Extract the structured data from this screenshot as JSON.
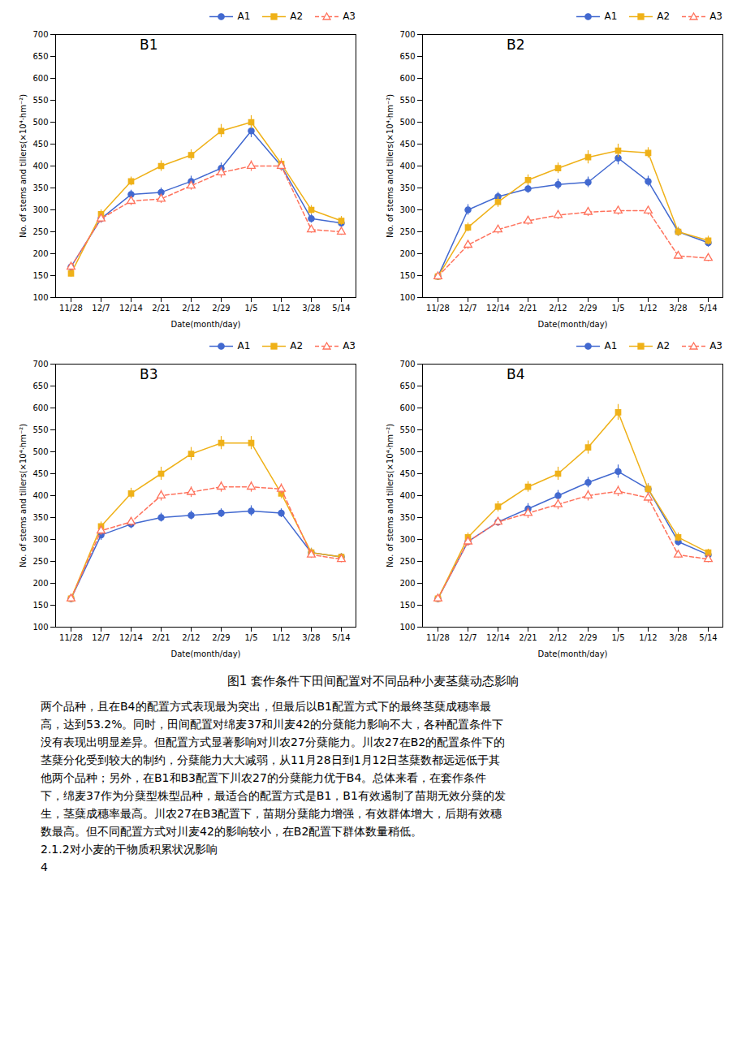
{
  "title": "图1  套作条件下田间配置对不同品种小麦茎蘖动态影响",
  "annotations": [
    "两个品种，且在B4的配置方式表现最为突出，但最后以B1配置方式下的最终茎蘖成穗率最",
    "高，达到53.2%。同时，田间配置对绵麦37和川麦42的分蘖能力影响不大，各种配置条件下",
    "没有表现出明显差异。但配置方式显著影响对川农27分蘖能力。川农27在B2的配置条件下的",
    "茎蘖分化受到较大的制约，分蘖能力大大减弱，从11月28日到1月12日茎蘖数都远远低于其",
    "他两个品种；另外，在B1和B3配置下川农27的分蘖能力优于B4。总体来看，在套作条件",
    "下，绵麦37作为分蘖型株型品种，最适合的配置方式是B1，B1有效遏制了苗期无效分蘖的发",
    "生，茎蘖成穗率最高。川农27在B3配置下，苗期分蘖能力增强，有效群体增大，后期有效穗",
    "数最高。但不同配置方式对川麦42的影响较小，在B2配置下群体数量稍低。",
    "2.1.2对小麦的干物质积累状况影响",
    "4"
  ],
  "chart_data": [
    {
      "type": "line",
      "title": "B1",
      "categories": [
        "11/28",
        "12/7",
        "12/14",
        "2/21",
        "2/12",
        "2/29",
        "1/5",
        "1/12",
        "3/28",
        "5/14"
      ],
      "xlabel": "Date(month/day)",
      "ylabel": "No. of stems and tillers(×10⁴·hm⁻²)",
      "ylim": [
        100,
        700
      ],
      "yticks": [
        100,
        150,
        200,
        250,
        300,
        350,
        400,
        450,
        500,
        550,
        600,
        650,
        700
      ],
      "grid": false,
      "legend": "upper right",
      "series": [
        {
          "name": "A1",
          "marker": "circle",
          "line_style": "solid",
          "values": [
            170,
            280,
            335,
            340,
            365,
            395,
            480,
            400,
            280,
            270
          ],
          "errors": [
            8,
            10,
            10,
            10,
            12,
            12,
            15,
            10,
            10,
            10
          ]
        },
        {
          "name": "A2",
          "marker": "square",
          "line_style": "solid",
          "values": [
            155,
            290,
            365,
            400,
            425,
            480,
            500,
            405,
            300,
            275
          ],
          "errors": [
            8,
            10,
            10,
            12,
            12,
            15,
            15,
            12,
            10,
            10
          ]
        },
        {
          "name": "A3",
          "marker": "triangle-open",
          "line_style": "dashed",
          "values": [
            170,
            280,
            320,
            325,
            355,
            385,
            400,
            400,
            255,
            250
          ],
          "errors": [
            8,
            10,
            10,
            10,
            10,
            12,
            12,
            12,
            8,
            8
          ]
        }
      ]
    },
    {
      "type": "line",
      "title": "B2",
      "categories": [
        "11/28",
        "12/7",
        "12/14",
        "2/21",
        "2/12",
        "2/29",
        "1/5",
        "1/12",
        "3/28",
        "5/14"
      ],
      "xlabel": "Date(month/day)",
      "ylabel": "No. of stems and tillers(×10⁴·hm⁻²)",
      "ylim": [
        100,
        700
      ],
      "yticks": [
        100,
        150,
        200,
        250,
        300,
        350,
        400,
        450,
        500,
        550,
        600,
        650,
        700
      ],
      "grid": false,
      "legend": "upper right",
      "series": [
        {
          "name": "A1",
          "marker": "circle",
          "line_style": "solid",
          "values": [
            148,
            300,
            330,
            348,
            358,
            363,
            418,
            365,
            250,
            225
          ],
          "errors": [
            8,
            12,
            10,
            10,
            12,
            12,
            15,
            12,
            10,
            10
          ]
        },
        {
          "name": "A2",
          "marker": "square",
          "line_style": "solid",
          "values": [
            148,
            260,
            318,
            368,
            395,
            420,
            435,
            430,
            250,
            230
          ],
          "errors": [
            8,
            10,
            12,
            12,
            12,
            15,
            15,
            12,
            10,
            10
          ]
        },
        {
          "name": "A3",
          "marker": "triangle-open",
          "line_style": "dashed",
          "values": [
            148,
            220,
            255,
            275,
            288,
            295,
            298,
            298,
            195,
            190
          ],
          "errors": [
            6,
            10,
            10,
            10,
            10,
            10,
            10,
            10,
            8,
            8
          ]
        }
      ]
    },
    {
      "type": "line",
      "title": "B3",
      "categories": [
        "11/28",
        "12/7",
        "12/14",
        "2/21",
        "2/12",
        "2/29",
        "1/5",
        "1/12",
        "3/28",
        "5/14"
      ],
      "xlabel": "Date(month/day)",
      "ylabel": "No. of stems and tillers(×10⁴·hm⁻²)",
      "ylim": [
        100,
        700
      ],
      "yticks": [
        100,
        150,
        200,
        250,
        300,
        350,
        400,
        450,
        500,
        550,
        600,
        650,
        700
      ],
      "grid": false,
      "legend": "upper right",
      "series": [
        {
          "name": "A1",
          "marker": "circle",
          "line_style": "solid",
          "values": [
            165,
            310,
            335,
            350,
            355,
            360,
            365,
            360,
            270,
            260
          ],
          "errors": [
            8,
            12,
            10,
            10,
            10,
            10,
            12,
            10,
            10,
            8
          ]
        },
        {
          "name": "A2",
          "marker": "square",
          "line_style": "solid",
          "values": [
            165,
            330,
            405,
            450,
            495,
            520,
            520,
            405,
            270,
            260
          ],
          "errors": [
            8,
            10,
            12,
            15,
            15,
            15,
            15,
            12,
            10,
            8
          ]
        },
        {
          "name": "A3",
          "marker": "triangle-open",
          "line_style": "dashed",
          "values": [
            165,
            320,
            340,
            400,
            408,
            420,
            420,
            415,
            265,
            255
          ],
          "errors": [
            8,
            10,
            10,
            12,
            12,
            12,
            12,
            12,
            8,
            8
          ]
        }
      ]
    },
    {
      "type": "line",
      "title": "B4",
      "categories": [
        "11/28",
        "12/7",
        "12/14",
        "2/21",
        "2/12",
        "2/29",
        "1/5",
        "1/12",
        "3/28",
        "5/14"
      ],
      "xlabel": "Date(month/day)",
      "ylabel": "No. of stems and tillers(×10⁴·hm⁻²)",
      "ylim": [
        100,
        700
      ],
      "yticks": [
        100,
        150,
        200,
        250,
        300,
        350,
        400,
        450,
        500,
        550,
        600,
        650,
        700
      ],
      "grid": false,
      "legend": "upper right",
      "series": [
        {
          "name": "A1",
          "marker": "circle",
          "line_style": "solid",
          "values": [
            165,
            295,
            340,
            370,
            400,
            430,
            455,
            415,
            295,
            265
          ],
          "errors": [
            8,
            10,
            10,
            12,
            12,
            12,
            15,
            12,
            10,
            8
          ]
        },
        {
          "name": "A2",
          "marker": "square",
          "line_style": "solid",
          "values": [
            165,
            305,
            375,
            420,
            450,
            510,
            590,
            415,
            305,
            270
          ],
          "errors": [
            8,
            10,
            12,
            12,
            15,
            15,
            18,
            12,
            10,
            8
          ]
        },
        {
          "name": "A3",
          "marker": "triangle-open",
          "line_style": "dashed",
          "values": [
            165,
            295,
            340,
            360,
            380,
            400,
            410,
            395,
            265,
            255
          ],
          "errors": [
            8,
            10,
            10,
            12,
            12,
            12,
            12,
            12,
            8,
            8
          ]
        }
      ]
    }
  ]
}
